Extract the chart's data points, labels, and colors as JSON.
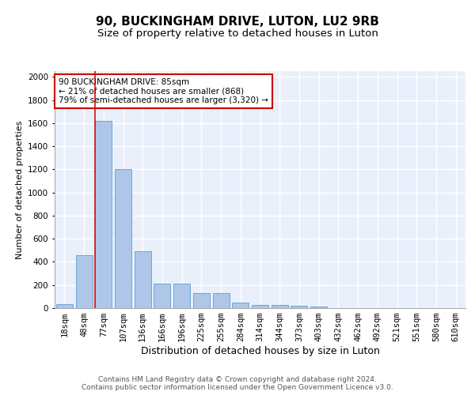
{
  "title1": "90, BUCKINGHAM DRIVE, LUTON, LU2 9RB",
  "title2": "Size of property relative to detached houses in Luton",
  "xlabel": "Distribution of detached houses by size in Luton",
  "ylabel": "Number of detached properties",
  "categories": [
    "18sqm",
    "48sqm",
    "77sqm",
    "107sqm",
    "136sqm",
    "166sqm",
    "196sqm",
    "225sqm",
    "255sqm",
    "284sqm",
    "314sqm",
    "344sqm",
    "373sqm",
    "403sqm",
    "432sqm",
    "462sqm",
    "492sqm",
    "521sqm",
    "551sqm",
    "580sqm",
    "610sqm"
  ],
  "values": [
    35,
    460,
    1620,
    1200,
    490,
    210,
    210,
    130,
    130,
    45,
    30,
    30,
    20,
    15,
    0,
    0,
    0,
    0,
    0,
    0,
    0
  ],
  "bar_color": "#aec6e8",
  "bar_edge_color": "#5a9fd4",
  "background_color": "#eaf0fb",
  "grid_color": "#ffffff",
  "vline_color": "#cc0000",
  "vline_bar_index": 2,
  "annotation_text": "90 BUCKINGHAM DRIVE: 85sqm\n← 21% of detached houses are smaller (868)\n79% of semi-detached houses are larger (3,320) →",
  "annotation_box_color": "#ffffff",
  "annotation_box_edge": "#cc0000",
  "ylim": [
    0,
    2050
  ],
  "yticks": [
    0,
    200,
    400,
    600,
    800,
    1000,
    1200,
    1400,
    1600,
    1800,
    2000
  ],
  "footnote": "Contains HM Land Registry data © Crown copyright and database right 2024.\nContains public sector information licensed under the Open Government Licence v3.0.",
  "title1_fontsize": 11,
  "title2_fontsize": 9.5,
  "xlabel_fontsize": 9,
  "ylabel_fontsize": 8,
  "tick_fontsize": 7.5,
  "annotation_fontsize": 7.5,
  "footnote_fontsize": 6.5
}
